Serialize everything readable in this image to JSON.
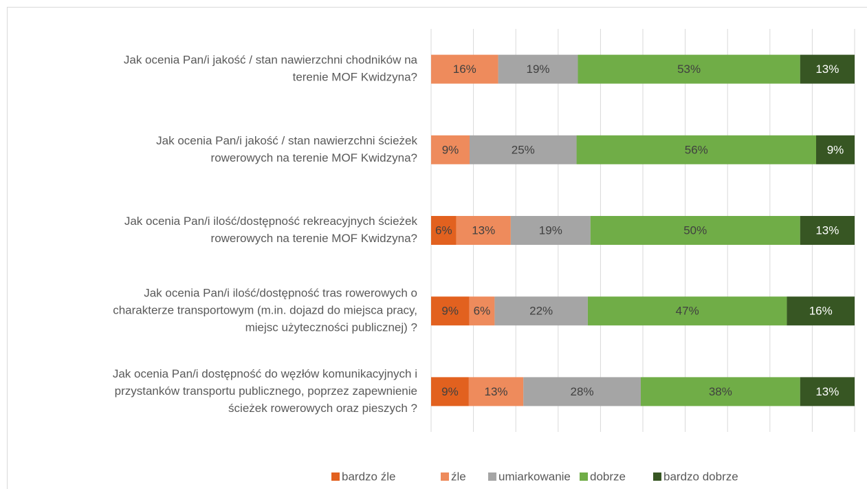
{
  "chart_data": {
    "type": "stacked_bar_percent",
    "orientation": "horizontal",
    "categories": [
      [
        "Jak ocenia Pan/i jakość / stan nawierzchni chodników na",
        "terenie MOF Kwidzyna?"
      ],
      [
        "Jak ocenia Pan/i jakość / stan nawierzchni ścieżek",
        "rowerowych na terenie MOF Kwidzyna?"
      ],
      [
        "Jak ocenia Pan/i ilość/dostępność rekreacyjnych ścieżek",
        "rowerowych na terenie MOF Kwidzyna?"
      ],
      [
        "Jak ocenia Pan/i ilość/dostępność tras rowerowych o",
        "charakterze transportowym (m.in. dojazd do miejsca pracy,",
        "miejsc użyteczności publicznej) ?"
      ],
      [
        "Jak ocenia Pan/i dostępność do węzłów komunikacyjnych i",
        "przystanków transportu publicznego, poprzez zapewnienie",
        "ścieżek rowerowych oraz pieszych ?"
      ]
    ],
    "series": [
      {
        "name": "bardzo źle",
        "color": "#e2611f",
        "label_color": "#404040",
        "values": [
          null,
          null,
          6,
          9,
          9
        ],
        "value_labels": [
          null,
          null,
          "6%",
          "9%",
          "9%"
        ]
      },
      {
        "name": "źle",
        "color": "#ee8b5c",
        "label_color": "#404040",
        "values": [
          16,
          9,
          13,
          6,
          13
        ],
        "value_labels": [
          "16%",
          "9%",
          "13%",
          "6%",
          "13%"
        ]
      },
      {
        "name": "umiarkowanie",
        "color": "#a5a5a5",
        "label_color": "#404040",
        "values": [
          19,
          25,
          19,
          22,
          28
        ],
        "value_labels": [
          "19%",
          "25%",
          "19%",
          "22%",
          "28%"
        ]
      },
      {
        "name": "dobrze",
        "color": "#70ad47",
        "label_color": "#404040",
        "values": [
          53,
          56,
          50,
          47,
          38
        ],
        "value_labels": [
          "53%",
          "56%",
          "50%",
          "47%",
          "38%"
        ]
      },
      {
        "name": "bardzo dobrze",
        "color": "#375623",
        "label_color": "#ffffff",
        "values": [
          13,
          9,
          13,
          16,
          13
        ],
        "value_labels": [
          "13%",
          "9%",
          "13%",
          "16%",
          "13%"
        ]
      }
    ],
    "grid": true,
    "legend": "bottom"
  }
}
